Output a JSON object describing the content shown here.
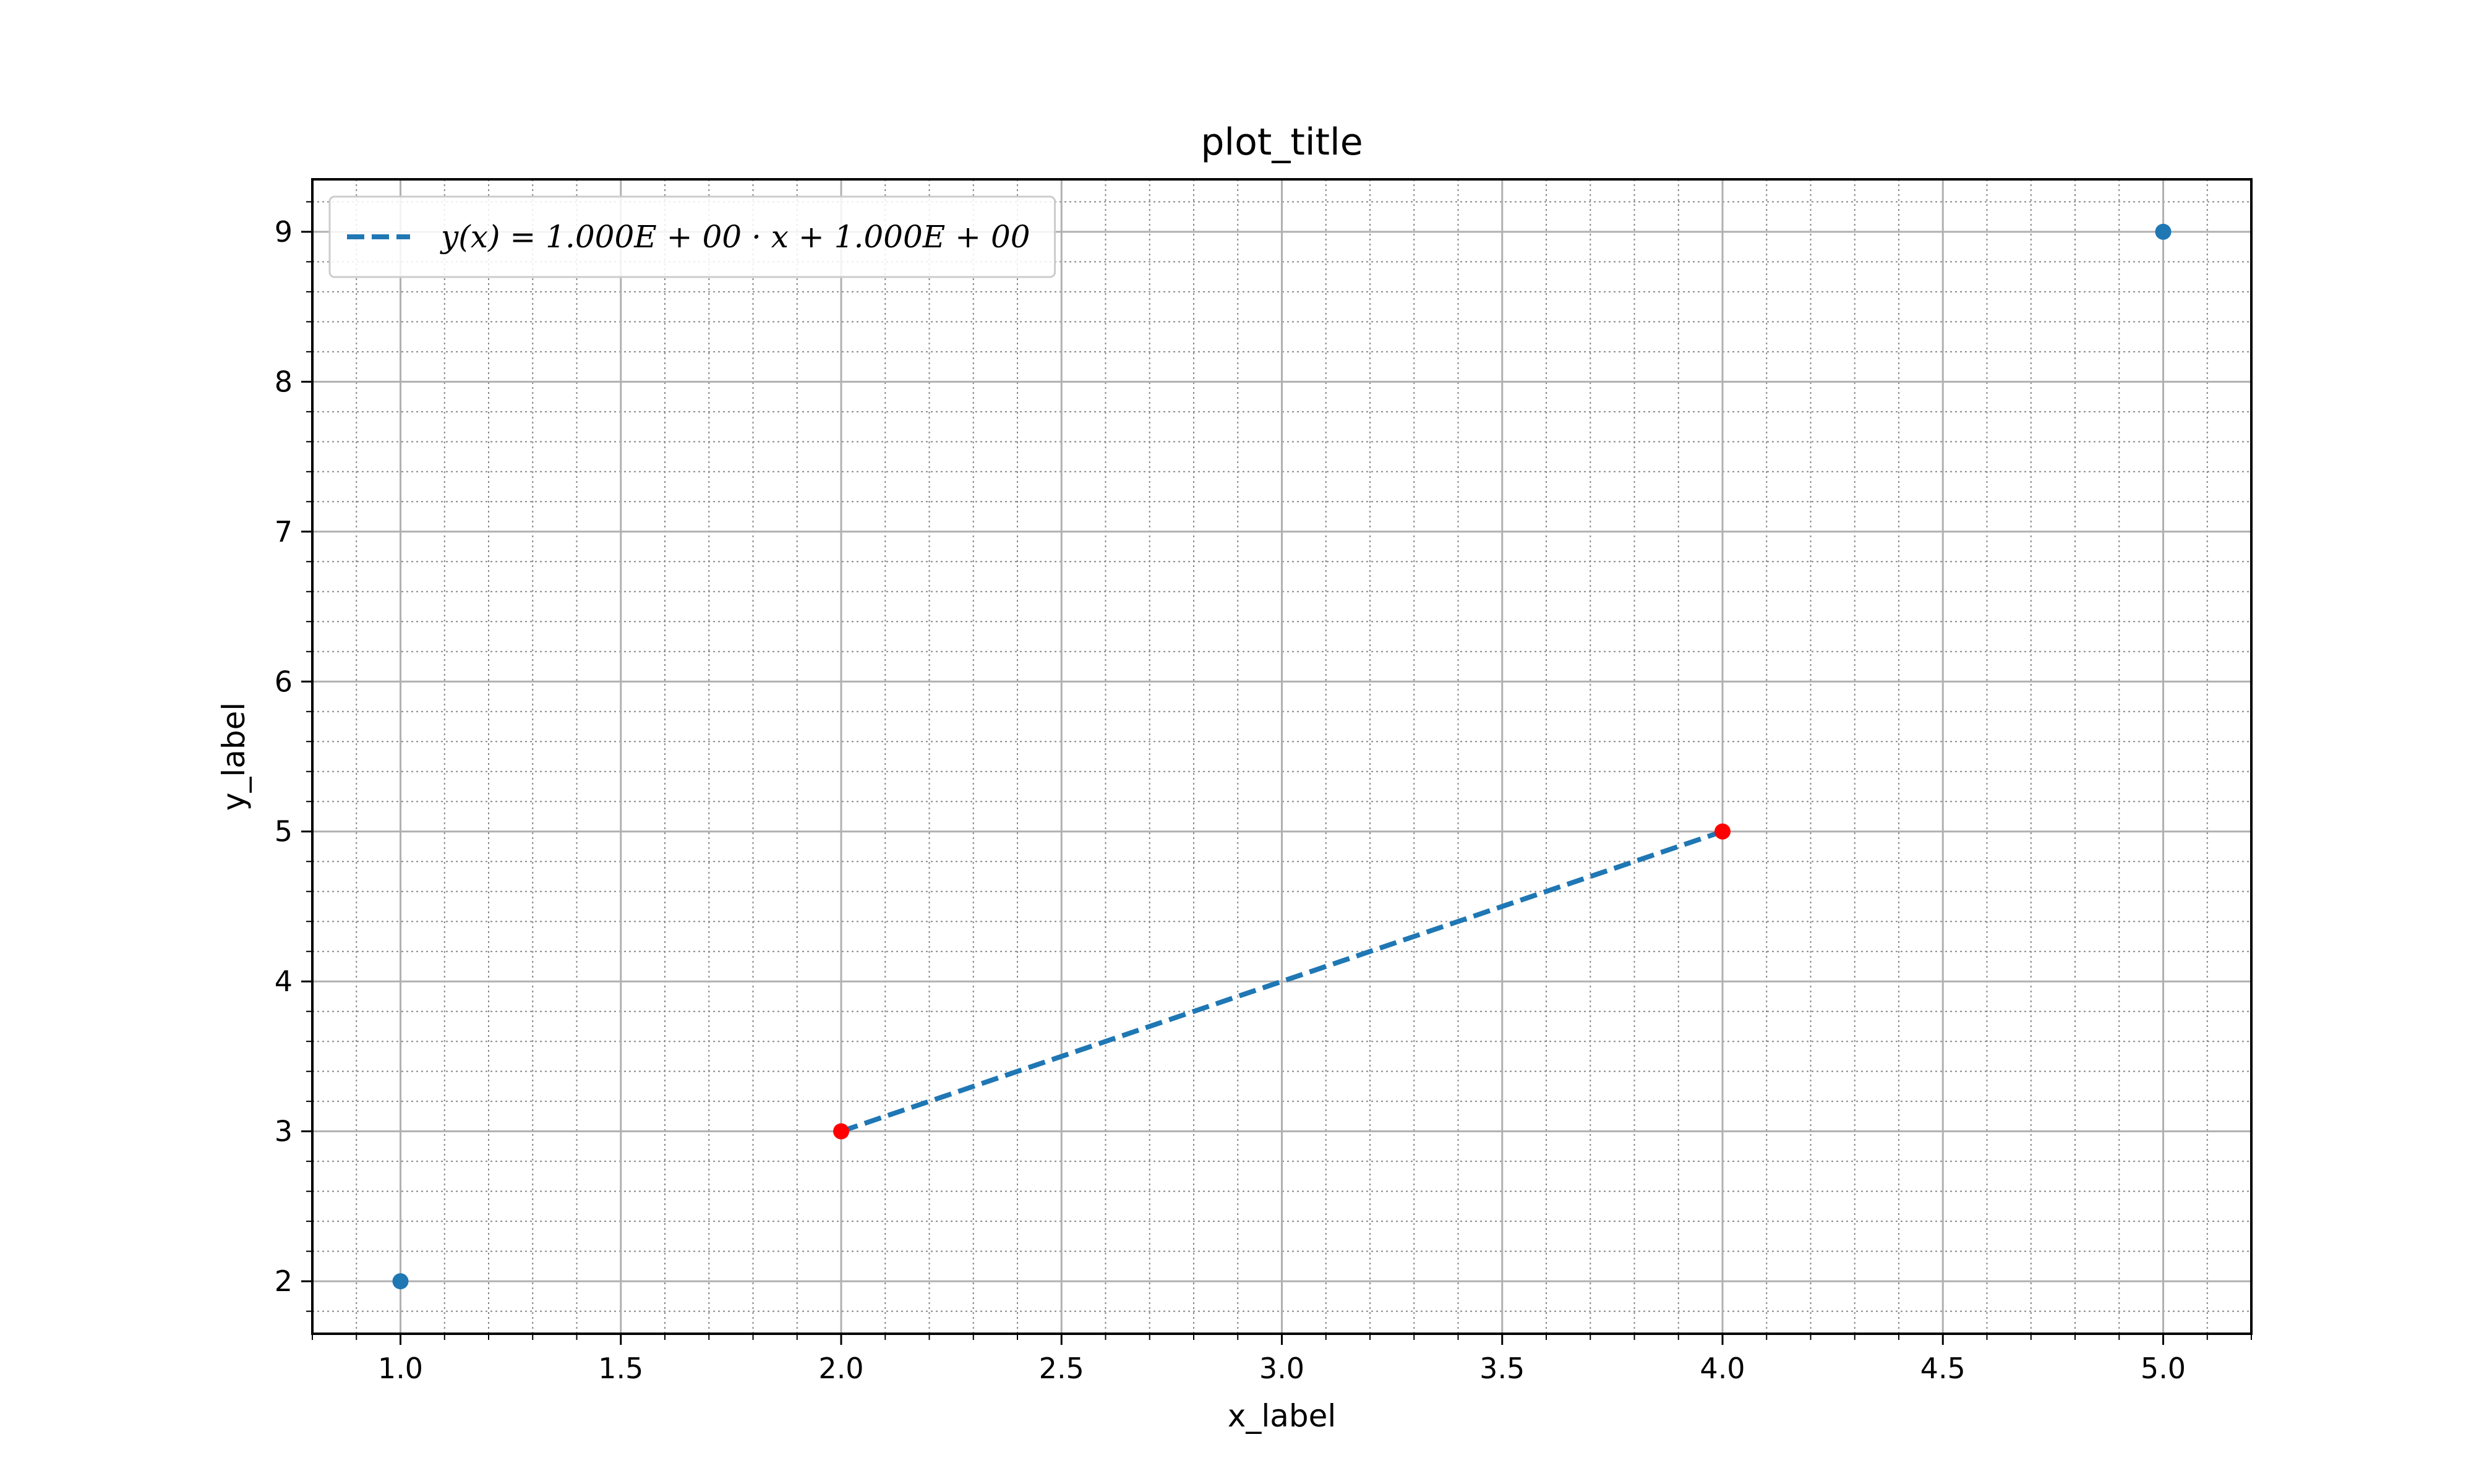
{
  "chart_data": {
    "type": "line",
    "title": "plot_title",
    "xlabel": "x_label",
    "ylabel": "y_label",
    "xlim": [
      0.8,
      5.2
    ],
    "ylim": [
      1.65,
      9.35
    ],
    "x_ticks": [
      1.0,
      1.5,
      2.0,
      2.5,
      3.0,
      3.5,
      4.0,
      4.5,
      5.0
    ],
    "x_tick_labels": [
      "1.0",
      "1.5",
      "2.0",
      "2.5",
      "3.0",
      "3.5",
      "4.0",
      "4.5",
      "5.0"
    ],
    "y_ticks": [
      2,
      3,
      4,
      5,
      6,
      7,
      8,
      9
    ],
    "y_tick_labels": [
      "2",
      "3",
      "4",
      "5",
      "6",
      "7",
      "8",
      "9"
    ],
    "x_minor_step": 0.1,
    "y_minor_step": 0.2,
    "grid": {
      "major": true,
      "minor": true
    },
    "legend_placement": "top-left",
    "series": [
      {
        "name": "y(x) = 1.000E + 00 · x + 1.000E + 00",
        "kind": "line",
        "style": "dashed",
        "color": "#1f77b4",
        "x": [
          2,
          4
        ],
        "y": [
          3,
          5
        ]
      },
      {
        "kind": "scatter",
        "color": "#1f77b4",
        "x": [
          1,
          5
        ],
        "y": [
          2,
          9
        ]
      },
      {
        "kind": "scatter",
        "color": "#ff0000",
        "x": [
          2,
          4
        ],
        "y": [
          3,
          5
        ]
      }
    ]
  }
}
